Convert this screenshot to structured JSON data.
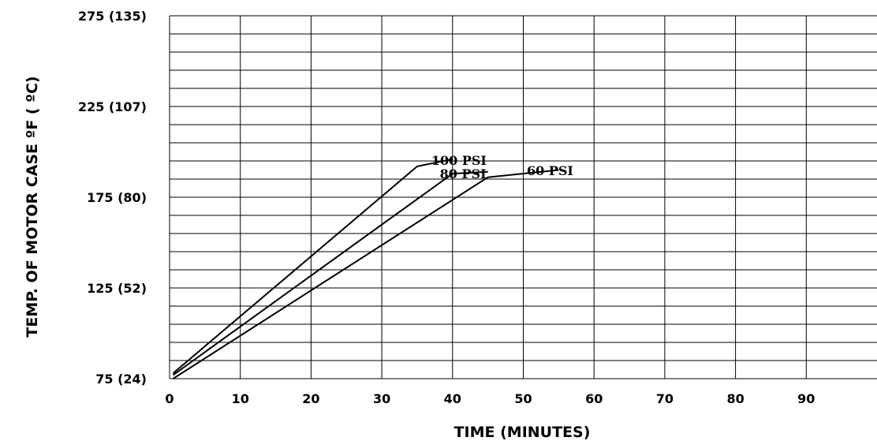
{
  "chart_data": {
    "type": "line",
    "title": "",
    "xlabel": "TIME (MINUTES)",
    "ylabel": "TEMP. OF MOTOR CASE   ºF  (  ºC)",
    "xlim": [
      0,
      100
    ],
    "ylim": [
      75,
      275
    ],
    "grid": true,
    "x_ticks": [
      0,
      10,
      20,
      30,
      40,
      50,
      60,
      70,
      80,
      90
    ],
    "x_tick_labels": [
      "0",
      "10",
      "20",
      "30",
      "40",
      "50",
      "60",
      "70",
      "80",
      "90"
    ],
    "y_ticks": [
      75,
      125,
      175,
      225,
      275
    ],
    "y_tick_labels": [
      "75  (24)",
      "125  (52)",
      "175  (80)",
      "225 (107)",
      "275 (135)"
    ],
    "y_minor_step": 10,
    "series": [
      {
        "name": "100  PSI",
        "x": [
          0.5,
          35,
          40
        ],
        "y": [
          78,
          192,
          196
        ]
      },
      {
        "name": "80  PSI",
        "x": [
          0.5,
          40,
          45
        ],
        "y": [
          77,
          188,
          189
        ]
      },
      {
        "name": "60  PSI",
        "x": [
          0.5,
          45,
          55
        ],
        "y": [
          75,
          186,
          190
        ]
      }
    ]
  }
}
